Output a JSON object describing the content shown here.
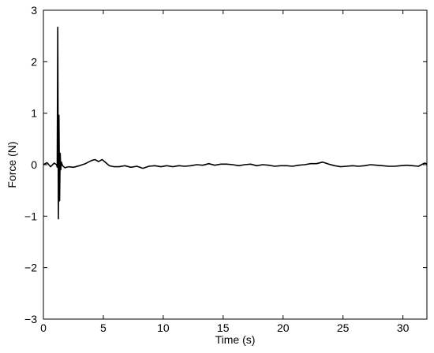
{
  "chart_data": {
    "type": "line",
    "title": "",
    "xlabel": "Time (s)",
    "ylabel": "Force (N)",
    "xlim": [
      0,
      32
    ],
    "ylim": [
      -3,
      3
    ],
    "xticks": [
      0,
      5,
      10,
      15,
      20,
      25,
      30
    ],
    "yticks": [
      -3,
      -2,
      -1,
      0,
      1,
      2,
      3
    ],
    "grid": false,
    "legend": "none",
    "line_color": "#000000",
    "series": [
      {
        "x": [
          0,
          0.3,
          0.6,
          0.9,
          1.1,
          1.15,
          1.2,
          1.25,
          1.3,
          1.35,
          1.4,
          1.45,
          1.5,
          1.6,
          1.8,
          2.1,
          2.5,
          3.0,
          3.5,
          4.0,
          4.3,
          4.6,
          4.9,
          5.2,
          5.5,
          5.9,
          6.3,
          6.8,
          7.3,
          7.8,
          8.3,
          8.8,
          9.3,
          9.8,
          10.3,
          10.8,
          11.3,
          11.8,
          12.3,
          12.8,
          13.3,
          13.8,
          14.3,
          14.8,
          15.3,
          15.8,
          16.3,
          16.8,
          17.3,
          17.8,
          18.3,
          18.8,
          19.3,
          19.8,
          20.3,
          20.8,
          21.3,
          21.8,
          22.3,
          22.8,
          23.3,
          23.8,
          24.3,
          24.8,
          25.3,
          25.8,
          26.3,
          26.8,
          27.3,
          27.8,
          28.3,
          28.8,
          29.3,
          29.8,
          30.3,
          30.8,
          31.3,
          31.8,
          32.0
        ],
        "y": [
          0.0,
          0.04,
          -0.04,
          0.03,
          0.0,
          -0.05,
          2.67,
          -1.05,
          0.96,
          -0.7,
          0.22,
          -0.1,
          0.05,
          -0.02,
          -0.06,
          -0.04,
          -0.05,
          -0.02,
          0.02,
          0.08,
          0.1,
          0.06,
          0.1,
          0.04,
          -0.02,
          -0.04,
          -0.04,
          -0.02,
          -0.05,
          -0.03,
          -0.07,
          -0.03,
          -0.02,
          -0.04,
          -0.02,
          -0.04,
          -0.02,
          -0.03,
          -0.02,
          0.0,
          -0.01,
          0.02,
          -0.01,
          0.01,
          0.01,
          0.0,
          -0.02,
          0.0,
          0.01,
          -0.02,
          0.0,
          -0.01,
          -0.03,
          -0.02,
          -0.02,
          -0.03,
          -0.01,
          0.0,
          0.02,
          0.02,
          0.05,
          0.01,
          -0.02,
          -0.04,
          -0.03,
          -0.02,
          -0.03,
          -0.02,
          0.0,
          -0.01,
          -0.02,
          -0.03,
          -0.03,
          -0.02,
          -0.01,
          -0.02,
          -0.03,
          0.03,
          0.02
        ]
      }
    ]
  }
}
